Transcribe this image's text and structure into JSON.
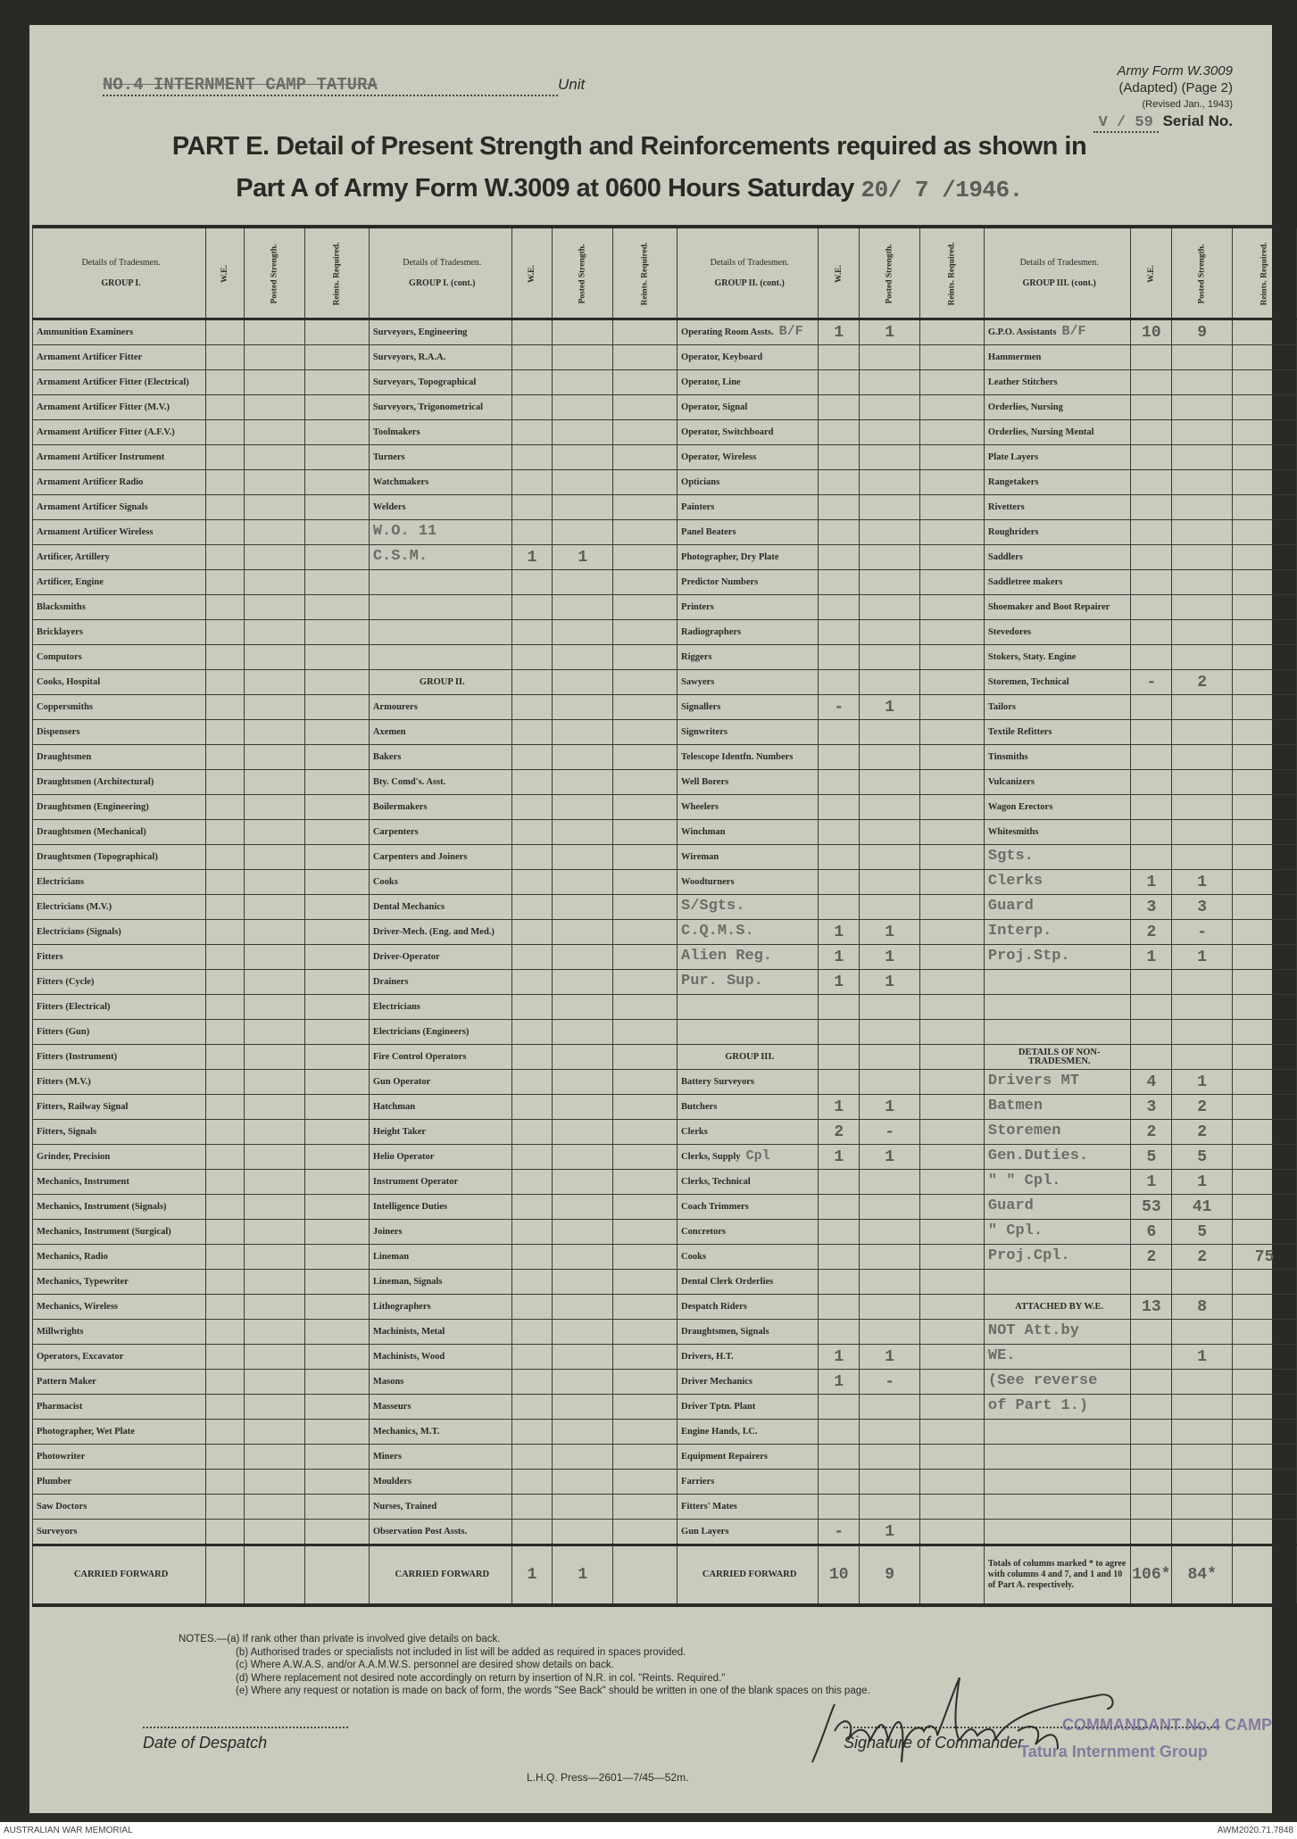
{
  "header": {
    "unit_value": "NO.4 INTERNMENT CAMP TATURA",
    "unit_label": "Unit",
    "form_ref": [
      "Army Form W.3009",
      "(Adapted) (Page 2)",
      "(Revised Jan., 1943)"
    ],
    "serial_value": "V / 59",
    "serial_label": "Serial No.",
    "title_line1": "PART E.  Detail of Present Strength and Reinforcements required as shown in",
    "title_line2": "Part A of Army Form W.3009 at 0600 Hours Saturday",
    "date_value": "20/ 7 /1946."
  },
  "columns": {
    "details": "Details of Tradesmen.",
    "we": "W.E.",
    "posted": "Posted Strength.",
    "reints": "Reints. Required.",
    "group_titles": [
      "GROUP I.",
      "GROUP I. (cont.)",
      "GROUP II. (cont.)",
      "GROUP III. (cont.)"
    ]
  },
  "groups": [
    {
      "rows": [
        {
          "label": "Ammunition Examiners"
        },
        {
          "label": "Armament Artificer Fitter"
        },
        {
          "label": "Armament Artificer Fitter (Electrical)"
        },
        {
          "label": "Armament Artificer Fitter (M.V.)"
        },
        {
          "label": "Armament Artificer Fitter (A.F.V.)"
        },
        {
          "label": "Armament Artificer Instrument"
        },
        {
          "label": "Armament Artificer Radio"
        },
        {
          "label": "Armament Artificer Signals"
        },
        {
          "label": "Armament Artificer Wireless"
        },
        {
          "label": "Artificer, Artillery"
        },
        {
          "label": "Artificer, Engine"
        },
        {
          "label": "Blacksmiths"
        },
        {
          "label": "Bricklayers"
        },
        {
          "label": "Computors"
        },
        {
          "label": "Cooks, Hospital"
        },
        {
          "label": "Coppersmiths"
        },
        {
          "label": "Dispensers"
        },
        {
          "label": "Draughtsmen"
        },
        {
          "label": "Draughtsmen (Architectural)"
        },
        {
          "label": "Draughtsmen (Engineering)"
        },
        {
          "label": "Draughtsmen (Mechanical)"
        },
        {
          "label": "Draughtsmen (Topographical)"
        },
        {
          "label": "Electricians"
        },
        {
          "label": "Electricians (M.V.)"
        },
        {
          "label": "Electricians (Signals)"
        },
        {
          "label": "Fitters"
        },
        {
          "label": "Fitters (Cycle)"
        },
        {
          "label": "Fitters (Electrical)"
        },
        {
          "label": "Fitters (Gun)"
        },
        {
          "label": "Fitters (Instrument)"
        },
        {
          "label": "Fitters (M.V.)"
        },
        {
          "label": "Fitters, Railway Signal"
        },
        {
          "label": "Fitters, Signals"
        },
        {
          "label": "Grinder, Precision"
        },
        {
          "label": "Mechanics, Instrument"
        },
        {
          "label": "Mechanics, Instrument (Signals)"
        },
        {
          "label": "Mechanics, Instrument (Surgical)"
        },
        {
          "label": "Mechanics, Radio"
        },
        {
          "label": "Mechanics, Typewriter"
        },
        {
          "label": "Mechanics, Wireless"
        },
        {
          "label": "Millwrights"
        },
        {
          "label": "Operators, Excavator"
        },
        {
          "label": "Pattern Maker"
        },
        {
          "label": "Pharmacist"
        },
        {
          "label": "Photographer, Wet Plate"
        },
        {
          "label": "Photowriter"
        },
        {
          "label": "Plumber"
        },
        {
          "label": "Saw Doctors"
        },
        {
          "label": "Surveyors"
        }
      ],
      "carried_forward": {
        "label": "CARRIED FORWARD",
        "we": "",
        "posted": "",
        "reints": ""
      }
    },
    {
      "rows": [
        {
          "label": "Surveyors, Engineering"
        },
        {
          "label": "Surveyors, R.A.A."
        },
        {
          "label": "Surveyors, Topographical"
        },
        {
          "label": "Surveyors, Trigonometrical"
        },
        {
          "label": "Toolmakers"
        },
        {
          "label": "Turners"
        },
        {
          "label": "Watchmakers"
        },
        {
          "label": "Welders"
        },
        {
          "label": "W.O. 11",
          "typed": true
        },
        {
          "label": "C.S.M.",
          "typed": true,
          "we": "1",
          "posted": "1"
        },
        {},
        {},
        {},
        {},
        {
          "label": "GROUP II.",
          "heading": true
        },
        {
          "label": "Armourers"
        },
        {
          "label": "Axemen"
        },
        {
          "label": "Bakers"
        },
        {
          "label": "Bty. Comd's. Asst."
        },
        {
          "label": "Boilermakers"
        },
        {
          "label": "Carpenters"
        },
        {
          "label": "Carpenters and Joiners"
        },
        {
          "label": "Cooks"
        },
        {
          "label": "Dental Mechanics"
        },
        {
          "label": "Driver-Mech. (Eng. and Med.)"
        },
        {
          "label": "Driver-Operator"
        },
        {
          "label": "Drainers"
        },
        {
          "label": "Electricians"
        },
        {
          "label": "Electricians (Engineers)"
        },
        {
          "label": "Fire Control Operators"
        },
        {
          "label": "Gun Operator"
        },
        {
          "label": "Hatchman"
        },
        {
          "label": "Height Taker"
        },
        {
          "label": "Helio Operator"
        },
        {
          "label": "Instrument Operator"
        },
        {
          "label": "Intelligence Duties"
        },
        {
          "label": "Joiners"
        },
        {
          "label": "Lineman"
        },
        {
          "label": "Lineman, Signals"
        },
        {
          "label": "Lithographers"
        },
        {
          "label": "Machinists, Metal"
        },
        {
          "label": "Machinists, Wood"
        },
        {
          "label": "Masons"
        },
        {
          "label": "Masseurs"
        },
        {
          "label": "Mechanics, M.T."
        },
        {
          "label": "Miners"
        },
        {
          "label": "Moulders"
        },
        {
          "label": "Nurses, Trained"
        },
        {
          "label": "Observation Post Assts."
        }
      ],
      "carried_forward": {
        "label": "CARRIED FORWARD",
        "we": "1",
        "posted": "1",
        "reints": ""
      }
    },
    {
      "rows": [
        {
          "label": "Operating Room Assts.",
          "note": "B/F",
          "we": "1",
          "posted": "1"
        },
        {
          "label": "Operator, Keyboard"
        },
        {
          "label": "Operator, Line"
        },
        {
          "label": "Operator, Signal"
        },
        {
          "label": "Operator, Switchboard"
        },
        {
          "label": "Operator, Wireless"
        },
        {
          "label": "Opticians"
        },
        {
          "label": "Painters"
        },
        {
          "label": "Panel Beaters"
        },
        {
          "label": "Photographer, Dry Plate"
        },
        {
          "label": "Predictor Numbers"
        },
        {
          "label": "Printers"
        },
        {
          "label": "Radiographers"
        },
        {
          "label": "Riggers"
        },
        {
          "label": "Sawyers"
        },
        {
          "label": "Signallers",
          "we": "-",
          "posted": "1"
        },
        {
          "label": "Signwriters"
        },
        {
          "label": "Telescope Identfn. Numbers"
        },
        {
          "label": "Well Borers"
        },
        {
          "label": "Wheelers"
        },
        {
          "label": "Winchman"
        },
        {
          "label": "Wireman"
        },
        {
          "label": "Woodturners"
        },
        {
          "label": "S/Sgts.",
          "typed": true
        },
        {
          "label": "C.Q.M.S.",
          "typed": true,
          "we": "1",
          "posted": "1"
        },
        {
          "label": "Alien Reg.",
          "typed": true,
          "we": "1",
          "posted": "1"
        },
        {
          "label": "Pur. Sup.",
          "typed": true,
          "we": "1",
          "posted": "1"
        },
        {},
        {},
        {
          "label": "GROUP III.",
          "heading": true
        },
        {
          "label": "Battery Surveyors"
        },
        {
          "label": "Butchers",
          "we": "1",
          "posted": "1"
        },
        {
          "label": "Clerks",
          "we": "2",
          "posted": "-"
        },
        {
          "label": "Clerks, Supply",
          "note": "Cpl",
          "we": "1",
          "posted": "1"
        },
        {
          "label": "Clerks, Technical"
        },
        {
          "label": "Coach Trimmers"
        },
        {
          "label": "Concretors"
        },
        {
          "label": "Cooks"
        },
        {
          "label": "Dental Clerk Orderlies"
        },
        {
          "label": "Despatch Riders"
        },
        {
          "label": "Draughtsmen, Signals"
        },
        {
          "label": "Drivers, H.T.",
          "we": "1",
          "posted": "1"
        },
        {
          "label": "Driver Mechanics",
          "we": "1",
          "posted": "-"
        },
        {
          "label": "Driver Tptn. Plant"
        },
        {
          "label": "Engine Hands, I.C."
        },
        {
          "label": "Equipment Repairers"
        },
        {
          "label": "Farriers"
        },
        {
          "label": "Fitters' Mates"
        },
        {
          "label": "Gun Layers",
          "we": "-",
          "posted": "1"
        }
      ],
      "carried_forward": {
        "label": "CARRIED FORWARD",
        "we": "10",
        "posted": "9",
        "reints": ""
      }
    },
    {
      "rows": [
        {
          "label": "G.P.O. Assistants",
          "note": "B/F",
          "we": "10",
          "posted": "9"
        },
        {
          "label": "Hammermen"
        },
        {
          "label": "Leather Stitchers"
        },
        {
          "label": "Orderlies, Nursing"
        },
        {
          "label": "Orderlies, Nursing Mental"
        },
        {
          "label": "Plate Layers"
        },
        {
          "label": "Rangetakers"
        },
        {
          "label": "Rivetters"
        },
        {
          "label": "Roughriders"
        },
        {
          "label": "Saddlers"
        },
        {
          "label": "Saddletree makers"
        },
        {
          "label": "Shoemaker and Boot Repairer"
        },
        {
          "label": "Stevedores"
        },
        {
          "label": "Stokers, Staty. Engine"
        },
        {
          "label": "Storemen, Technical",
          "we": "-",
          "posted": "2"
        },
        {
          "label": "Tailors"
        },
        {
          "label": "Textile Refitters"
        },
        {
          "label": "Tinsmiths"
        },
        {
          "label": "Vulcanizers"
        },
        {
          "label": "Wagon Erectors"
        },
        {
          "label": "Whitesmiths"
        },
        {
          "label": "Sgts.",
          "typed": true
        },
        {
          "label": "Clerks",
          "typed": true,
          "we": "1",
          "posted": "1"
        },
        {
          "label": "Guard",
          "typed": true,
          "we": "3",
          "posted": "3"
        },
        {
          "label": "Interp.",
          "typed": true,
          "we": "2",
          "posted": "-"
        },
        {
          "label": "Proj.Stp.",
          "typed": true,
          "we": "1",
          "posted": "1"
        },
        {},
        {},
        {},
        {
          "label": "DETAILS OF NON-TRADESMEN.",
          "heading": true
        },
        {
          "label": "Drivers MT",
          "typed": true,
          "we": "4",
          "posted": "1"
        },
        {
          "label": "Batmen",
          "typed": true,
          "we": "3",
          "posted": "2"
        },
        {
          "label": "Storemen",
          "typed": true,
          "we": "2",
          "posted": "2"
        },
        {
          "label": "Gen.Duties.",
          "typed": true,
          "we": "5",
          "posted": "5"
        },
        {
          "label": "\" \" Cpl.",
          "typed": true,
          "we": "1",
          "posted": "1"
        },
        {
          "label": "Guard",
          "typed": true,
          "we": "53",
          "posted": "41"
        },
        {
          "label": "\" Cpl.",
          "typed": true,
          "we": "6",
          "posted": "5"
        },
        {
          "label": "Proj.Cpl.",
          "typed": true,
          "we": "2",
          "posted": "2",
          "reints": "75"
        },
        {},
        {
          "label": "ATTACHED BY W.E.",
          "heading": true,
          "we": "13",
          "posted": "8"
        },
        {
          "label": "NOT Att.by",
          "typed": true
        },
        {
          "label": "WE.",
          "typed": true,
          "posted": "1"
        },
        {
          "label": "(See reverse",
          "typed": true
        },
        {
          "label": "of Part 1.)",
          "typed": true
        },
        {},
        {},
        {},
        {},
        {}
      ],
      "carried_forward": {
        "label": "Totals of columns marked * to agree with columns 4 and 7, and 1 and 10 of Part A. respectively.",
        "we": "106*",
        "posted": "84*",
        "reints": ""
      }
    }
  ],
  "notes": [
    "NOTES.—(a) If rank other than private is involved give details on back.",
    "(b) Authorised trades or specialists not included in list will be added as required in spaces provided.",
    "(c) Where A.W.A.S. and/or A.A.M.W.S. personnel are desired show details on back.",
    "(d) Where replacement not desired note accordingly on return by insertion of N.R. in col. \"Reints. Required.\"",
    "(e) Where any request or notation is made on back of form, the words \"See Back\" should be written in one of the blank spaces on this page."
  ],
  "footer": {
    "date_of_despatch": "Date of Despatch",
    "signature_of_commander": "Signature of Commander",
    "press": "L.H.Q.  Press—2601—7/45—52m.",
    "stamp_lines": [
      "COMMANDANT No.4 CAMP",
      "Tatura  Internment Group"
    ],
    "archive_left": "AUSTRALIAN WAR MEMORIAL",
    "archive_right": "AWM2020.71.7848"
  },
  "colors": {
    "paper": "#c9cbbc",
    "ink": "#2a2a26",
    "typewriter": "#6d6d68",
    "stamp": "#6e5f96"
  }
}
